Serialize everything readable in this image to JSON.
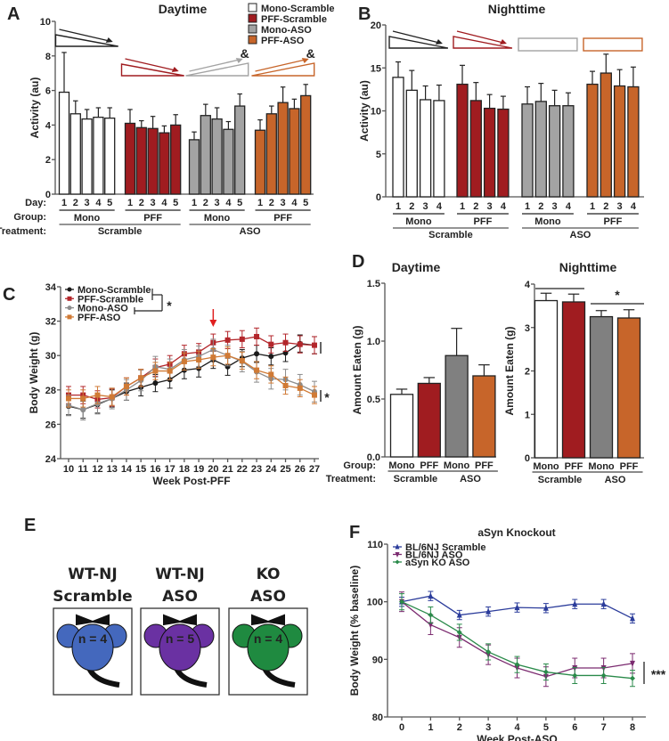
{
  "panel_labels": {
    "A": "A",
    "B": "B",
    "C": "C",
    "D": "D",
    "E": "E",
    "F": "F"
  },
  "colors": {
    "mono_scramble": "#ffffff",
    "pff_scramble": "#a01c20",
    "mono_aso": "#a3a3a3",
    "mono_aso_dark": "#808080",
    "pff_aso": "#c7652a",
    "bl6_scramble": "#2b3c9b",
    "bl6_aso": "#7b2a6f",
    "ko_aso": "#2a8a4a"
  },
  "chart_data": [
    {
      "id": "A",
      "type": "bar",
      "title": "Daytime",
      "ylabel": "Activity (au)",
      "ylim": [
        0,
        10
      ],
      "yticks": [
        "0",
        "2",
        "4",
        "6",
        "8",
        "10"
      ],
      "row_labels": {
        "day": "Day:",
        "group": "Group:",
        "treatment": "Treatment:"
      },
      "legend": [
        "Mono-Scramble",
        "PFF-Scramble",
        "Mono-ASO",
        "PFF-ASO"
      ],
      "legend_placement": "top-right",
      "treatments": [
        "Scramble",
        "ASO"
      ],
      "series": [
        {
          "name": "Mono-Scramble",
          "group": "Mono",
          "color": "#ffffff",
          "categories": [
            "1",
            "2",
            "3",
            "4",
            "5"
          ],
          "values": [
            5.9,
            4.65,
            4.35,
            4.45,
            4.4
          ],
          "errors": [
            2.3,
            0.75,
            0.55,
            0.55,
            0.6
          ],
          "trend": "decrease",
          "annotation": ""
        },
        {
          "name": "PFF-Scramble",
          "group": "PFF",
          "color": "#a01c20",
          "categories": [
            "1",
            "2",
            "3",
            "4",
            "5"
          ],
          "values": [
            4.1,
            3.85,
            3.8,
            3.55,
            4.0
          ],
          "errors": [
            0.8,
            0.4,
            0.7,
            0.4,
            0.6
          ],
          "trend": "decrease",
          "annotation": ""
        },
        {
          "name": "Mono-ASO",
          "group": "Mono",
          "color": "#a3a3a3",
          "categories": [
            "1",
            "2",
            "3",
            "4",
            "5"
          ],
          "values": [
            3.15,
            4.55,
            4.35,
            3.75,
            5.1
          ],
          "errors": [
            0.45,
            0.65,
            0.65,
            0.45,
            0.7
          ],
          "trend": "increase",
          "annotation": "&"
        },
        {
          "name": "PFF-ASO",
          "group": "PFF",
          "color": "#c7652a",
          "categories": [
            "1",
            "2",
            "3",
            "4",
            "5"
          ],
          "values": [
            3.7,
            4.65,
            5.3,
            4.95,
            5.7
          ],
          "errors": [
            0.6,
            0.45,
            0.9,
            0.55,
            0.65
          ],
          "trend": "increase",
          "annotation": "&"
        }
      ]
    },
    {
      "id": "B",
      "type": "bar",
      "title": "Nighttime",
      "ylabel": "Activity (au)",
      "ylim": [
        0,
        20
      ],
      "yticks": [
        "0",
        "5",
        "10",
        "15",
        "20"
      ],
      "treatments": [
        "Scramble",
        "ASO"
      ],
      "series": [
        {
          "name": "Mono-Scramble",
          "group": "Mono",
          "color": "#ffffff",
          "categories": [
            "1",
            "2",
            "3",
            "4"
          ],
          "values": [
            13.9,
            12.4,
            11.3,
            11.2
          ],
          "errors": [
            1.8,
            2.3,
            1.6,
            1.8
          ],
          "trend": "decrease"
        },
        {
          "name": "PFF-Scramble",
          "group": "PFF",
          "color": "#a01c20",
          "categories": [
            "1",
            "2",
            "3",
            "4"
          ],
          "values": [
            13.1,
            11.2,
            10.3,
            10.2
          ],
          "errors": [
            2.2,
            2.1,
            1.6,
            1.5
          ],
          "trend": "decrease"
        },
        {
          "name": "Mono-ASO",
          "group": "Mono",
          "color": "#a3a3a3",
          "categories": [
            "1",
            "2",
            "3",
            "4"
          ],
          "values": [
            10.8,
            11.1,
            10.6,
            10.6
          ],
          "errors": [
            2.0,
            2.1,
            1.8,
            1.5
          ],
          "trend": "flat"
        },
        {
          "name": "PFF-ASO",
          "group": "PFF",
          "color": "#c7652a",
          "categories": [
            "1",
            "2",
            "3",
            "4"
          ],
          "values": [
            13.1,
            14.4,
            12.9,
            12.8
          ],
          "errors": [
            1.5,
            2.2,
            1.9,
            2.3
          ],
          "trend": "flat"
        }
      ]
    },
    {
      "id": "C",
      "type": "line",
      "xlabel": "Week Post-PFF",
      "ylabel": "Body Weight (g)",
      "x": [
        10,
        11,
        12,
        13,
        14,
        15,
        16,
        17,
        18,
        19,
        20,
        21,
        22,
        23,
        24,
        25,
        26,
        27
      ],
      "xticks": [
        "10",
        "11",
        "12",
        "13",
        "14",
        "15",
        "16",
        "17",
        "18",
        "19",
        "20",
        "21",
        "22",
        "23",
        "24",
        "25",
        "26",
        "27"
      ],
      "ylim": [
        24,
        34
      ],
      "yticks": [
        "24",
        "26",
        "28",
        "30",
        "32",
        "34"
      ],
      "legend_placement": "top-left",
      "annotations": {
        "legend_bracket": "*",
        "end_bracket": "*",
        "arrow_at_week": 20
      },
      "series": [
        {
          "name": "Mono-Scramble",
          "color": "#1a1a1a",
          "marker": "circle",
          "values": [
            27.05,
            26.85,
            27.15,
            27.5,
            27.9,
            28.15,
            28.4,
            28.6,
            29.15,
            29.25,
            29.75,
            29.35,
            29.85,
            30.1,
            29.95,
            30.15,
            30.7,
            30.6
          ],
          "error": 0.5
        },
        {
          "name": "PFF-Scramble",
          "color": "#b3262b",
          "marker": "square",
          "values": [
            27.7,
            27.7,
            27.45,
            27.55,
            28.2,
            28.7,
            29.3,
            29.5,
            30.1,
            30.2,
            30.75,
            30.9,
            30.95,
            31.1,
            30.65,
            30.75,
            30.65,
            30.6
          ],
          "error": 0.5
        },
        {
          "name": "Mono-ASO",
          "color": "#8c8c8c",
          "marker": "circle",
          "values": [
            27.1,
            26.85,
            27.2,
            27.5,
            28.0,
            28.55,
            29.35,
            29.2,
            29.75,
            29.95,
            30.35,
            30.0,
            29.65,
            29.05,
            28.65,
            28.6,
            28.3,
            27.9
          ],
          "error": 0.6
        },
        {
          "name": "PFF-ASO",
          "color": "#d07a35",
          "marker": "square",
          "values": [
            27.5,
            27.5,
            27.7,
            27.6,
            28.2,
            28.7,
            29.1,
            29.1,
            29.65,
            29.75,
            29.9,
            30.0,
            29.7,
            29.15,
            28.9,
            28.25,
            28.1,
            27.7
          ],
          "error": 0.5
        }
      ]
    },
    {
      "id": "D-day",
      "type": "bar",
      "title": "Daytime",
      "ylabel": "Amount Eaten (g)",
      "ylim": [
        0,
        1.5
      ],
      "yticks": [
        "0.0",
        "0.5",
        "1.0",
        "1.5"
      ],
      "row_labels": {
        "group": "Group:",
        "treatment": "Treatment:"
      },
      "categories": [
        "Mono",
        "PFF",
        "Mono",
        "PFF"
      ],
      "treatments": [
        "Scramble",
        "ASO"
      ],
      "colors": [
        "#ffffff",
        "#a01c20",
        "#808080",
        "#c7652a"
      ],
      "values": [
        0.54,
        0.635,
        0.875,
        0.7
      ],
      "errors": [
        0.045,
        0.05,
        0.235,
        0.095
      ]
    },
    {
      "id": "D-night",
      "type": "bar",
      "title": "Nighttime",
      "ylabel": "Amount Eaten (g)",
      "ylim": [
        0,
        4
      ],
      "yticks": [
        "0",
        "1",
        "2",
        "3",
        "4"
      ],
      "categories": [
        "Mono",
        "PFF",
        "Mono",
        "PFF"
      ],
      "treatments": [
        "Scramble",
        "ASO"
      ],
      "colors": [
        "#ffffff",
        "#a01c20",
        "#808080",
        "#c7652a"
      ],
      "values": [
        3.62,
        3.59,
        3.25,
        3.22
      ],
      "errors": [
        0.17,
        0.18,
        0.14,
        0.19
      ],
      "annotation": "*"
    },
    {
      "id": "F",
      "type": "line",
      "title": "aSyn Knockout",
      "xlabel": "Week Post-ASO",
      "ylabel": "Body Weight (% baseline)",
      "x": [
        0,
        1,
        2,
        3,
        4,
        5,
        6,
        7,
        8
      ],
      "xticks": [
        "0",
        "1",
        "2",
        "3",
        "4",
        "5",
        "6",
        "7",
        "8"
      ],
      "ylim": [
        80,
        110
      ],
      "yticks": [
        "80",
        "90",
        "100",
        "110"
      ],
      "legend_placement": "top-left",
      "annotation": "***",
      "series": [
        {
          "name": "BL/6NJ Scramble",
          "color": "#2b3c9b",
          "marker": "triangle-up",
          "values": [
            100,
            101,
            97.7,
            98.3,
            99,
            98.9,
            99.6,
            99.6,
            97.1
          ],
          "error": 0.8
        },
        {
          "name": "BL/6NJ ASO",
          "color": "#7b2a6f",
          "marker": "triangle-down",
          "values": [
            100,
            96,
            93.8,
            90.8,
            88.5,
            87,
            88.5,
            88.5,
            89.3
          ],
          "error": 1.7
        },
        {
          "name": "aSyn KO ASO",
          "color": "#2a8a4a",
          "marker": "diamond",
          "values": [
            100,
            97.7,
            94.7,
            91.3,
            89.1,
            87.8,
            87.2,
            87.2,
            86.7
          ],
          "error": 1.4
        }
      ]
    }
  ],
  "panel_E": {
    "mice": [
      {
        "line1": "WT-NJ",
        "line2": "Scramble",
        "n_label": "n = 4",
        "color": "#4468bd"
      },
      {
        "line1": "WT-NJ",
        "line2": "ASO",
        "n_label": "n = 5",
        "color": "#6a31a2"
      },
      {
        "line1": "KO",
        "line2": "ASO",
        "n_label": "n = 4",
        "color": "#1f8a40"
      }
    ]
  }
}
